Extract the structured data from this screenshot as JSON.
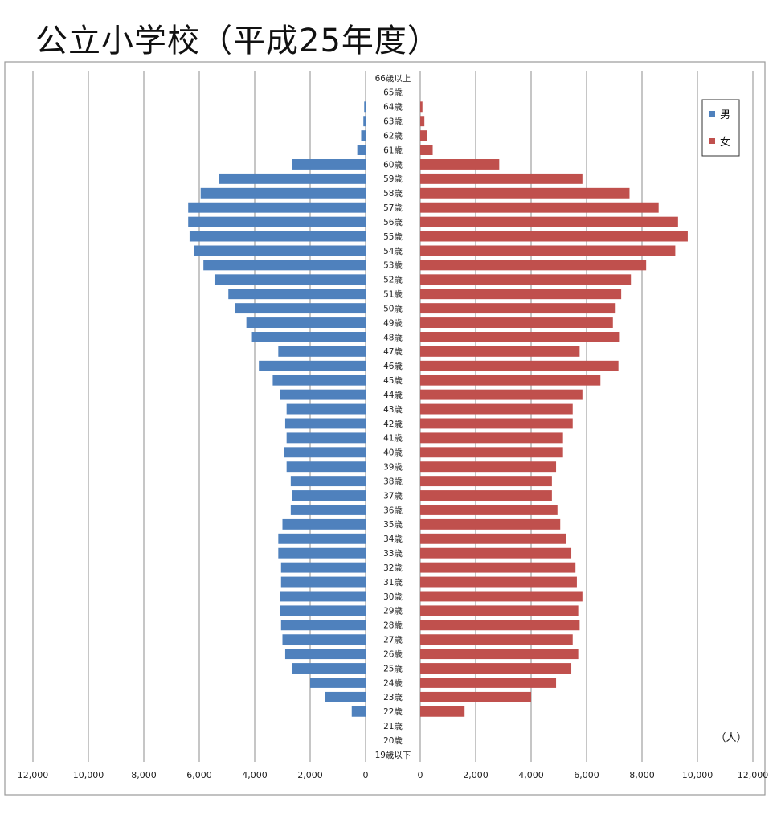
{
  "title": "公立小学校（平成25年度）",
  "chart_data": {
    "type": "bar",
    "orientation": "horizontal-pyramid",
    "title": "公立小学校（平成25年度）",
    "unit": "（人）",
    "left_axis": {
      "ticks": [
        "12,000",
        "10,000",
        "8,000",
        "6,000",
        "4,000",
        "2,000",
        "0"
      ],
      "range": [
        0,
        12000
      ]
    },
    "right_axis": {
      "ticks": [
        "0",
        "2,000",
        "4,000",
        "6,000",
        "8,000",
        "10,000",
        "12,000"
      ],
      "range": [
        0,
        12000
      ]
    },
    "legend": {
      "placement": "top-right"
    },
    "grid": true,
    "categories": [
      "66歳以上",
      "65歳",
      "64歳",
      "63歳",
      "62歳",
      "61歳",
      "60歳",
      "59歳",
      "58歳",
      "57歳",
      "56歳",
      "55歳",
      "54歳",
      "53歳",
      "52歳",
      "51歳",
      "50歳",
      "49歳",
      "48歳",
      "47歳",
      "46歳",
      "45歳",
      "44歳",
      "43歳",
      "42歳",
      "41歳",
      "40歳",
      "39歳",
      "38歳",
      "37歳",
      "36歳",
      "35歳",
      "34歳",
      "33歳",
      "32歳",
      "31歳",
      "30歳",
      "29歳",
      "28歳",
      "27歳",
      "26歳",
      "25歳",
      "24歳",
      "23歳",
      "22歳",
      "21歳",
      "20歳",
      "19歳以下"
    ],
    "series": [
      {
        "name": "男",
        "color": "#4f81bd",
        "values": [
          0,
          0,
          50,
          80,
          160,
          300,
          2650,
          5300,
          5950,
          6400,
          6400,
          6350,
          6200,
          5850,
          5450,
          4950,
          4700,
          4300,
          4100,
          3150,
          3850,
          3350,
          3100,
          2850,
          2900,
          2850,
          2950,
          2850,
          2700,
          2650,
          2700,
          3000,
          3150,
          3150,
          3050,
          3050,
          3100,
          3100,
          3050,
          3000,
          2900,
          2650,
          2000,
          1450,
          500,
          0,
          0,
          0
        ]
      },
      {
        "name": "女",
        "color": "#c0504d",
        "values": [
          0,
          0,
          80,
          150,
          250,
          450,
          2850,
          5850,
          7550,
          8600,
          9300,
          9650,
          9200,
          8150,
          7600,
          7250,
          7050,
          6950,
          7200,
          5750,
          7150,
          6500,
          5850,
          5500,
          5500,
          5150,
          5150,
          4900,
          4750,
          4750,
          4950,
          5050,
          5250,
          5450,
          5600,
          5650,
          5850,
          5700,
          5750,
          5500,
          5700,
          5450,
          4900,
          4000,
          1600,
          0,
          0,
          0
        ]
      }
    ]
  }
}
